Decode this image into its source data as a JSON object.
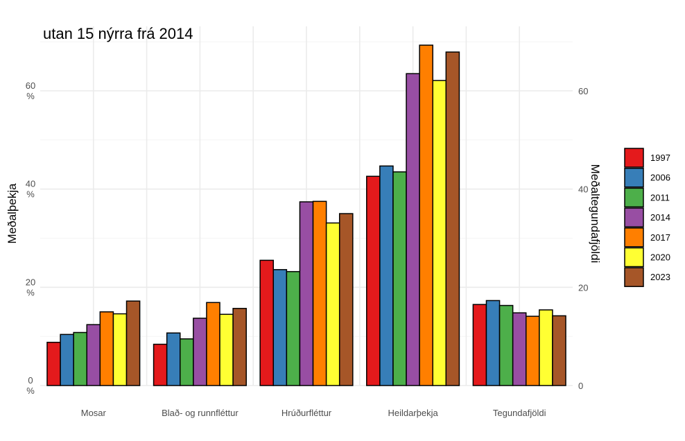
{
  "chart_data": {
    "type": "bar",
    "title": "utan 15 nýrra frá 2014",
    "ylabel": "Meðalþekja",
    "ylabel_right": "Meðaltegundafjöldi",
    "ylim": [
      0,
      70
    ],
    "y_ticks": [
      0,
      20,
      40,
      60
    ],
    "y_tick_labels": [
      "0\n%",
      "20\n%",
      "40\n%",
      "60\n%"
    ],
    "y_right_ticks": [
      0,
      20,
      40,
      60
    ],
    "y_right_tick_labels": [
      "0",
      "20",
      "40",
      "60"
    ],
    "grid": true,
    "legend_position": "right",
    "categories": [
      "Mosar",
      "Blað- og runnfléttur",
      "Hrúðurfléttur",
      "Heildarþekja",
      "Tegundafjöldi"
    ],
    "series": [
      {
        "name": "1997",
        "color": "#E41A1C",
        "values": [
          8.8,
          8.4,
          25.5,
          42.6,
          16.5
        ]
      },
      {
        "name": "2006",
        "color": "#377EB8",
        "values": [
          10.4,
          10.7,
          23.6,
          44.7,
          17.3
        ]
      },
      {
        "name": "2011",
        "color": "#4DAF4A",
        "values": [
          10.8,
          9.5,
          23.2,
          43.5,
          16.3
        ]
      },
      {
        "name": "2014",
        "color": "#984EA3",
        "values": [
          12.4,
          13.7,
          37.4,
          63.5,
          14.8
        ]
      },
      {
        "name": "2017",
        "color": "#FF7F00",
        "values": [
          15.0,
          16.9,
          37.5,
          69.3,
          14.1
        ]
      },
      {
        "name": "2020",
        "color": "#FFFF33",
        "values": [
          14.6,
          14.5,
          33.1,
          62.1,
          15.4
        ]
      },
      {
        "name": "2023",
        "color": "#A65628",
        "values": [
          17.2,
          15.7,
          35.0,
          67.9,
          14.2
        ]
      }
    ]
  }
}
